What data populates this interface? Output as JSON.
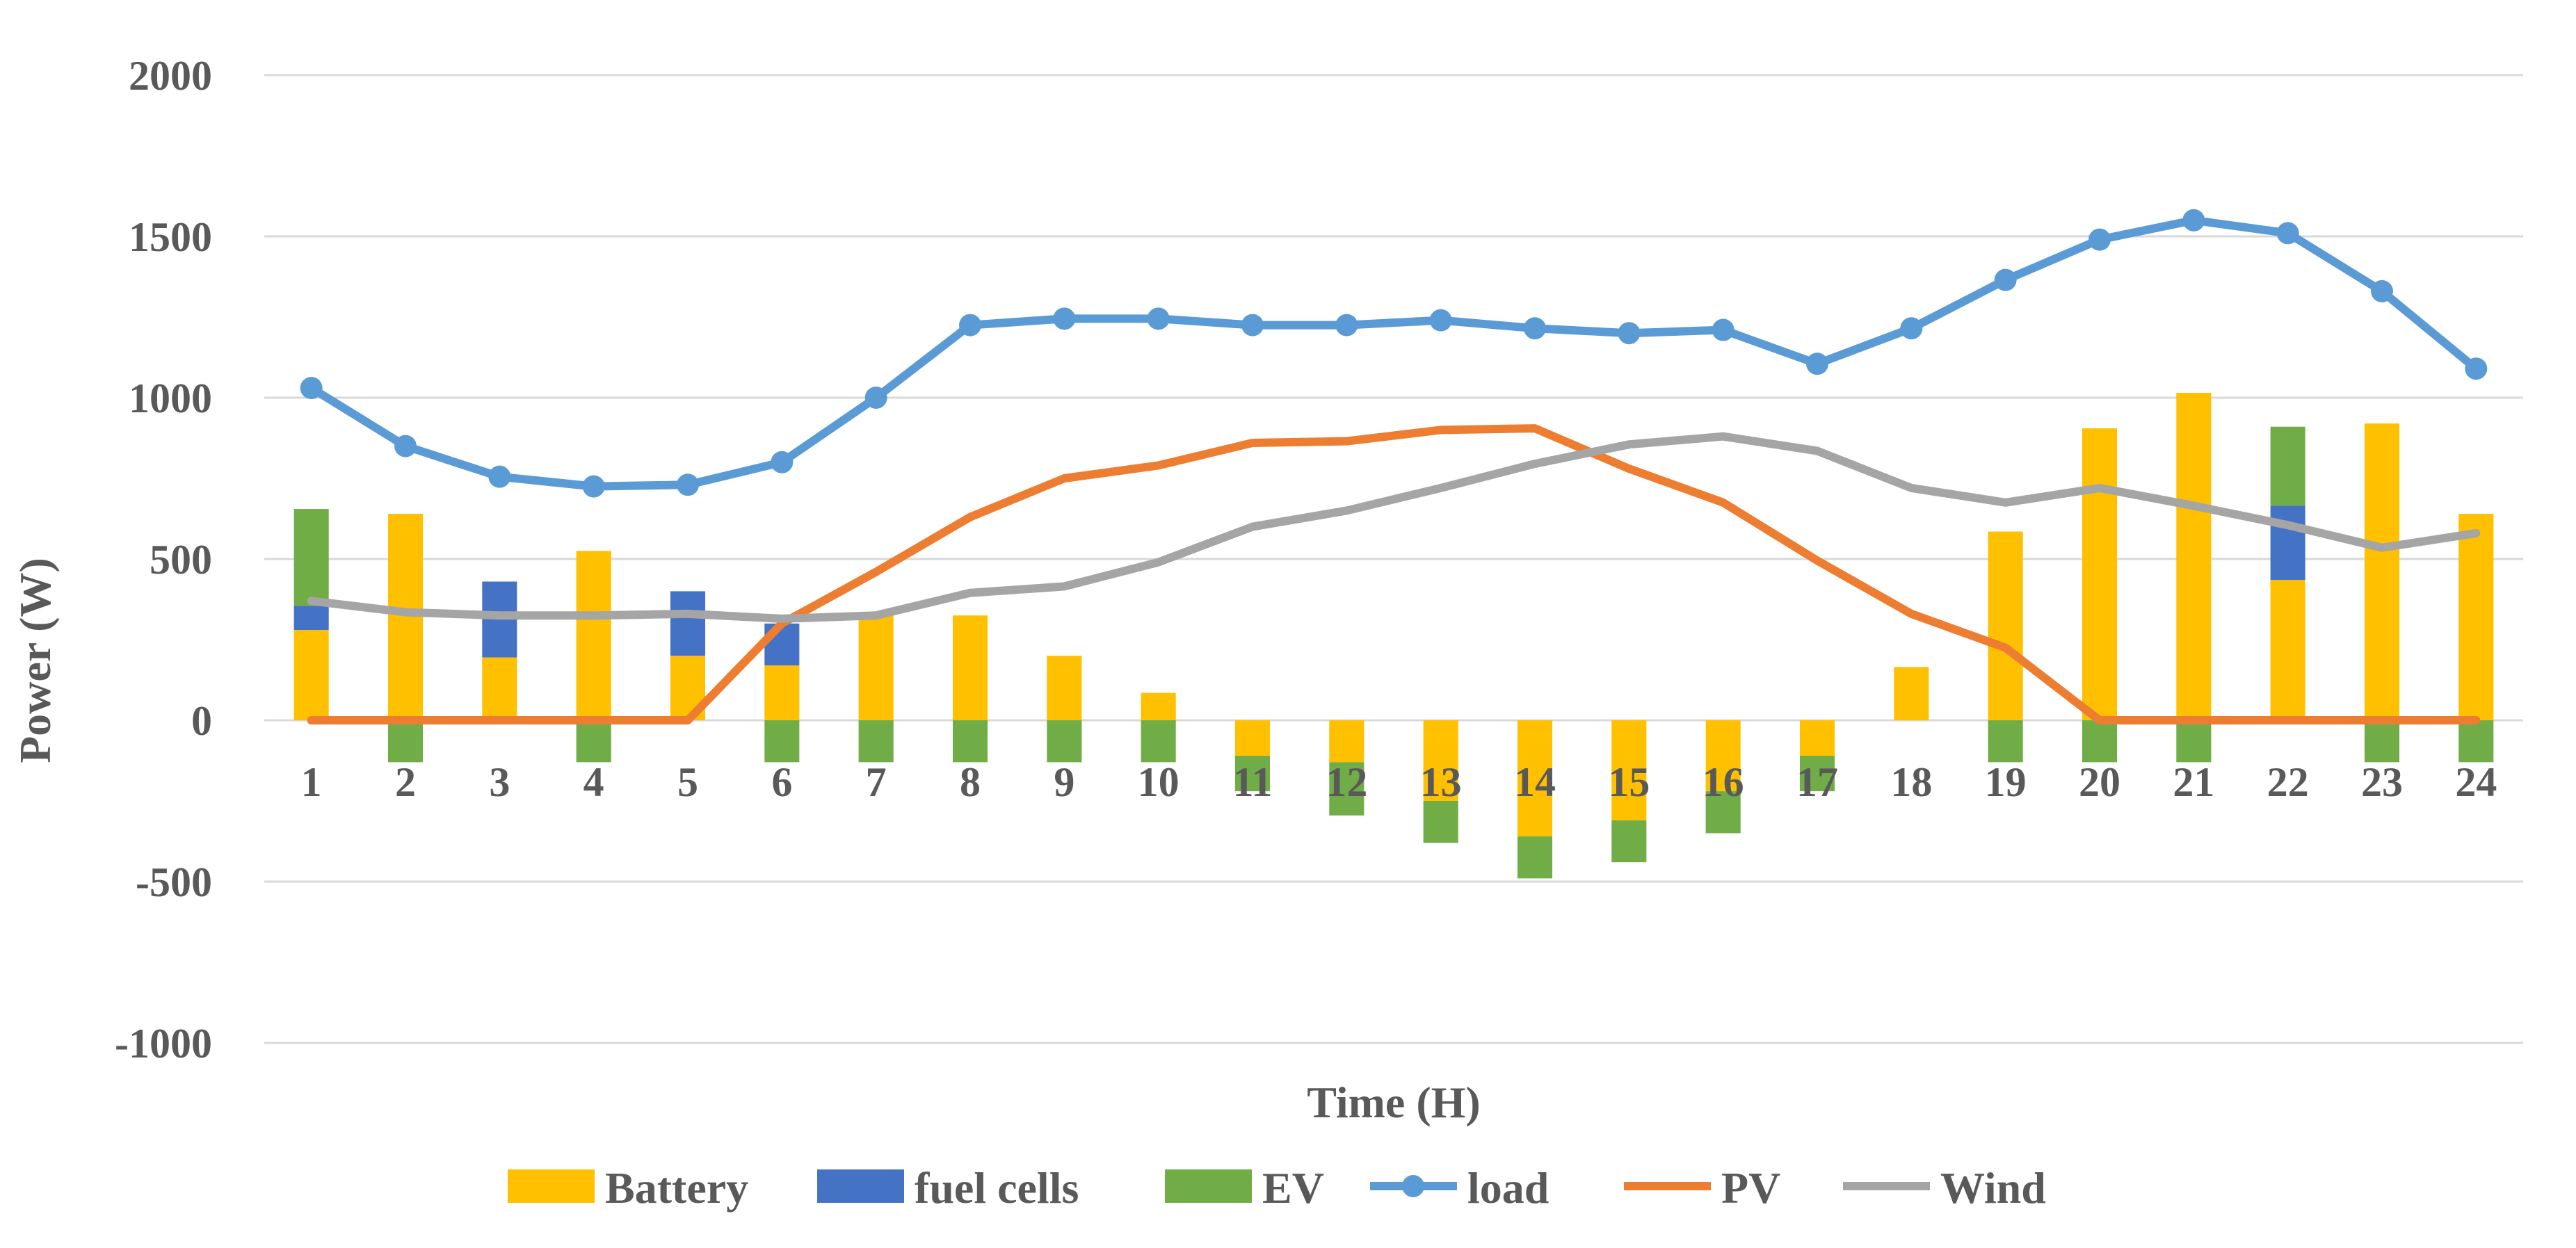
{
  "chart_data": {
    "type": "bar",
    "title": "",
    "xlabel": "Time (H)",
    "ylabel": "Power (W)",
    "ylim": [
      -1000,
      2000
    ],
    "yticks": [
      2000,
      1500,
      1000,
      500,
      0,
      -500,
      -1000
    ],
    "grid": true,
    "legend_position": "bottom",
    "categories": [
      "1",
      "2",
      "3",
      "4",
      "5",
      "6",
      "7",
      "8",
      "9",
      "10",
      "11",
      "12",
      "13",
      "14",
      "15",
      "16",
      "17",
      "18",
      "19",
      "20",
      "21",
      "22",
      "23",
      "24"
    ],
    "bar_series": [
      {
        "name": "Battery",
        "color": "#FFC000",
        "values": [
          280,
          640,
          195,
          525,
          200,
          170,
          325,
          325,
          200,
          85,
          -110,
          -130,
          -250,
          -360,
          -310,
          -220,
          -110,
          165,
          585,
          905,
          1015,
          435,
          920,
          640
        ]
      },
      {
        "name": "fuel cells",
        "color": "#4472C4",
        "values": [
          75,
          0,
          235,
          0,
          200,
          130,
          0,
          0,
          0,
          0,
          0,
          0,
          0,
          0,
          0,
          0,
          0,
          0,
          0,
          0,
          0,
          230,
          0,
          0
        ]
      },
      {
        "name": "EV",
        "color": "#70AD47",
        "values": [
          300,
          -130,
          0,
          -130,
          0,
          -130,
          -130,
          -130,
          -130,
          -130,
          -110,
          -165,
          -130,
          -130,
          -130,
          -130,
          -110,
          0,
          -130,
          -130,
          -130,
          245,
          -130,
          -130
        ]
      }
    ],
    "line_series": [
      {
        "name": "load",
        "color": "#5B9BD5",
        "marker": "circle",
        "values": [
          1030,
          850,
          755,
          725,
          730,
          800,
          1000,
          1225,
          1245,
          1245,
          1225,
          1225,
          1240,
          1215,
          1200,
          1210,
          1105,
          1215,
          1365,
          1490,
          1550,
          1510,
          1330,
          1090
        ]
      },
      {
        "name": "PV",
        "color": "#ED7D31",
        "marker": "none",
        "values": [
          0,
          0,
          0,
          0,
          0,
          300,
          460,
          630,
          750,
          790,
          860,
          865,
          900,
          905,
          780,
          675,
          495,
          330,
          225,
          0,
          0,
          0,
          0,
          0
        ]
      },
      {
        "name": "Wind",
        "color": "#A5A5A5",
        "marker": "none",
        "values": [
          370,
          335,
          325,
          325,
          330,
          315,
          325,
          395,
          415,
          490,
          600,
          650,
          720,
          795,
          855,
          880,
          835,
          720,
          675,
          720,
          665,
          605,
          535,
          580
        ]
      }
    ]
  }
}
